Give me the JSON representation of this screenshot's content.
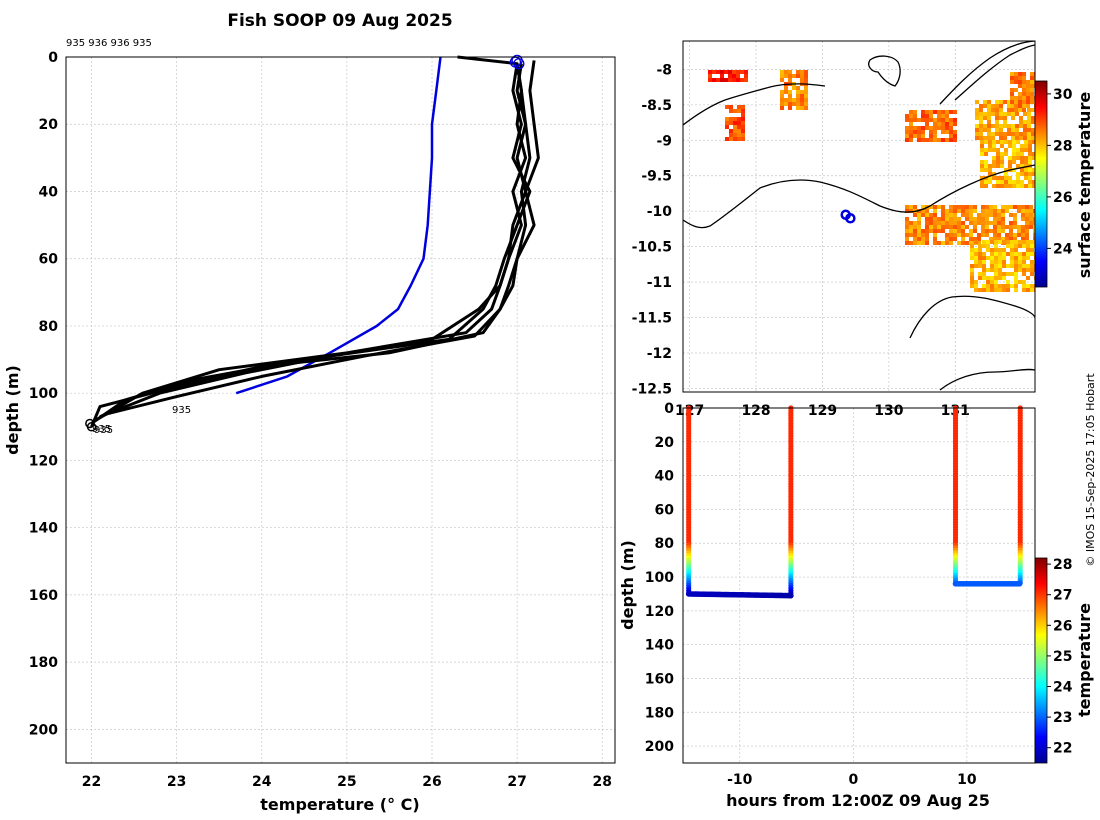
{
  "figure": {
    "title": "Fish SOOP 09 Aug 2025",
    "credit": "© IMOS 15-Sep-2025 17:05 Hobart",
    "top_label": "935 936 936 935",
    "profile_labels": [
      "935",
      "935",
      "935"
    ]
  },
  "chart_data": [
    {
      "type": "line",
      "name": "temperature-profiles",
      "xlabel": "temperature (° C)",
      "ylabel": "depth (m)",
      "xlim": [
        21.7,
        28.15
      ],
      "ylim": [
        210,
        0
      ],
      "xticks": [
        22,
        23,
        24,
        25,
        26,
        27,
        28
      ],
      "yticks": [
        0,
        20,
        40,
        60,
        80,
        100,
        120,
        140,
        160,
        180,
        200
      ],
      "grid": true,
      "series": [
        {
          "name": "climatology",
          "color": "#0000dd",
          "x": [
            26.1,
            26.05,
            26.0,
            26.0,
            25.95,
            25.9,
            25.75,
            25.6,
            25.35,
            24.8,
            24.3,
            23.7
          ],
          "y": [
            0,
            10,
            20,
            30,
            50,
            60,
            68,
            75,
            80,
            88,
            95,
            100
          ]
        },
        {
          "name": "profile-1",
          "color": "#000000",
          "x": [
            26.3,
            27.0,
            27.05,
            27.1,
            27.15,
            27.05,
            27.1,
            27.0,
            26.9,
            26.8,
            26.6,
            25.5,
            24.0,
            23.0,
            22.1,
            22.0
          ],
          "y": [
            0,
            2,
            10,
            20,
            30,
            40,
            50,
            60,
            68,
            75,
            82,
            88,
            92,
            98,
            104,
            110
          ]
        },
        {
          "name": "profile-2",
          "color": "#000000",
          "x": [
            27.0,
            27.05,
            27.0,
            27.1,
            26.95,
            27.05,
            26.9,
            26.8,
            26.7,
            26.4,
            25.0,
            23.5,
            22.6,
            22.05
          ],
          "y": [
            2,
            10,
            20,
            30,
            40,
            50,
            60,
            68,
            75,
            82,
            88,
            93,
            100,
            108
          ]
        },
        {
          "name": "profile-3",
          "color": "#000000",
          "x": [
            27.0,
            26.95,
            27.05,
            26.95,
            27.15,
            27.0,
            26.85,
            26.75,
            26.6,
            26.2,
            24.5,
            23.2,
            22.4,
            22.0
          ],
          "y": [
            2,
            10,
            20,
            30,
            40,
            50,
            60,
            68,
            75,
            84,
            90,
            96,
            102,
            109
          ]
        },
        {
          "name": "profile-4",
          "color": "#000000",
          "x": [
            27.05,
            27.0,
            27.1,
            27.0,
            27.1,
            26.95,
            26.9,
            26.8,
            26.55,
            26.0,
            24.8,
            23.8,
            22.8,
            22.1
          ],
          "y": [
            2,
            10,
            20,
            30,
            40,
            50,
            60,
            68,
            75,
            84,
            89,
            94,
            100,
            107
          ]
        },
        {
          "name": "profile-5",
          "color": "#000000",
          "x": [
            27.2,
            27.15,
            27.2,
            27.25,
            27.1,
            27.2,
            27.0,
            26.95,
            26.8,
            26.5,
            25.2,
            24.0,
            23.0,
            22.2
          ],
          "y": [
            1,
            10,
            20,
            30,
            40,
            50,
            60,
            68,
            75,
            83,
            89,
            95,
            101,
            106
          ]
        }
      ]
    },
    {
      "type": "heatmap",
      "name": "surface-temperature-map",
      "xticks": [
        "127",
        "128",
        "129",
        "130",
        "131"
      ],
      "yticks": [
        "-8",
        "-8.5",
        "-9",
        "-9.5",
        "-10",
        "-10.5",
        "-11",
        "-11.5",
        "-12",
        "-12.5"
      ],
      "xlim": [
        126.9,
        132.2
      ],
      "ylim": [
        -12.55,
        -7.6
      ],
      "colorbar": {
        "label": "surface temperature",
        "ticks": [
          24,
          26,
          28,
          30
        ],
        "range": [
          22.5,
          30.5
        ]
      },
      "track": [
        {
          "lon": 129.35,
          "lat": -10.05
        },
        {
          "lon": 129.42,
          "lat": -10.1
        }
      ]
    },
    {
      "type": "scatter",
      "name": "depth-time-section",
      "xlabel": "hours from 12:00Z 09 Aug 25",
      "ylabel": "depth (m)",
      "xlim": [
        -15,
        16
      ],
      "ylim": [
        210,
        0
      ],
      "xticks": [
        -10,
        0,
        10
      ],
      "yticks": [
        0,
        20,
        40,
        60,
        80,
        100,
        120,
        140,
        160,
        180,
        200
      ],
      "colorbar": {
        "label": "temperature",
        "ticks": [
          22,
          23,
          24,
          25,
          26,
          27,
          28
        ],
        "range": [
          21.5,
          28.2
        ]
      },
      "casts": [
        {
          "hours": -14.5,
          "max_depth": 110
        },
        {
          "hours": -5.5,
          "max_depth": 111
        },
        {
          "hours": 9.0,
          "max_depth": 104
        },
        {
          "hours": 14.7,
          "max_depth": 104
        }
      ]
    }
  ]
}
